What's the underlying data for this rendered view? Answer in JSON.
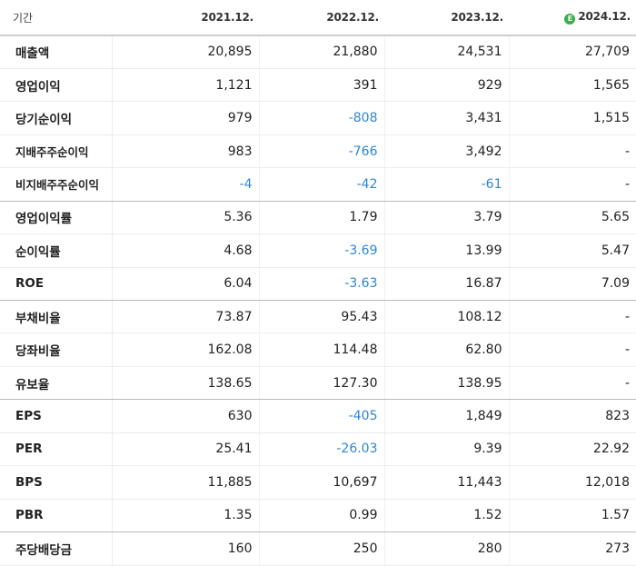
{
  "header": {
    "period_label": "기간",
    "columns": [
      "2021.12.",
      "2022.12.",
      "2023.12.",
      "2024.12."
    ],
    "estimate_badge": "E"
  },
  "colors": {
    "negative": "#2f86d6",
    "estimate_badge": "#3aae4c"
  },
  "rows": [
    {
      "label": "매출액",
      "values": [
        "20,895",
        "21,880",
        "24,531",
        "27,709"
      ]
    },
    {
      "label": "영업이익",
      "values": [
        "1,121",
        "391",
        "929",
        "1,565"
      ]
    },
    {
      "label": "당기순이익",
      "values": [
        "979",
        "-808",
        "3,431",
        "1,515"
      ]
    },
    {
      "label": "지배주주순이익",
      "values": [
        "983",
        "-766",
        "3,492",
        "-"
      ]
    },
    {
      "label": "비지배주주순이익",
      "values": [
        "-4",
        "-42",
        "-61",
        "-"
      ]
    },
    {
      "label": "영업이익률",
      "values": [
        "5.36",
        "1.79",
        "3.79",
        "5.65"
      ]
    },
    {
      "label": "순이익률",
      "values": [
        "4.68",
        "-3.69",
        "13.99",
        "5.47"
      ]
    },
    {
      "label": "ROE",
      "values": [
        "6.04",
        "-3.63",
        "16.87",
        "7.09"
      ]
    },
    {
      "label": "부채비율",
      "values": [
        "73.87",
        "95.43",
        "108.12",
        "-"
      ]
    },
    {
      "label": "당좌비율",
      "values": [
        "162.08",
        "114.48",
        "62.80",
        "-"
      ]
    },
    {
      "label": "유보율",
      "values": [
        "138.65",
        "127.30",
        "138.95",
        "-"
      ]
    },
    {
      "label": "EPS",
      "values": [
        "630",
        "-405",
        "1,849",
        "823"
      ]
    },
    {
      "label": "PER",
      "values": [
        "25.41",
        "-26.03",
        "9.39",
        "22.92"
      ]
    },
    {
      "label": "BPS",
      "values": [
        "11,885",
        "10,697",
        "11,443",
        "12,018"
      ]
    },
    {
      "label": "PBR",
      "values": [
        "1.35",
        "0.99",
        "1.52",
        "1.57"
      ]
    },
    {
      "label": "주당배당금",
      "values": [
        "160",
        "250",
        "280",
        "273"
      ]
    }
  ]
}
